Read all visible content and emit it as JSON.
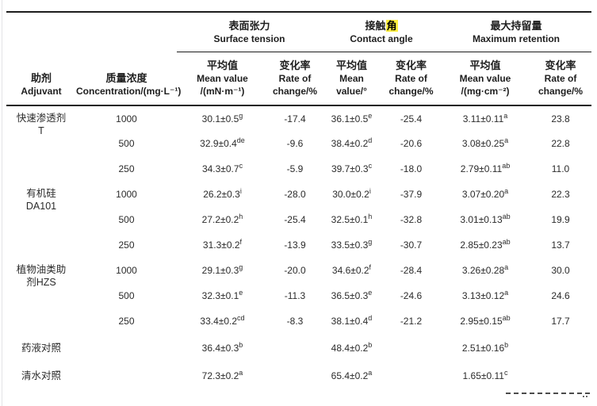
{
  "colors": {
    "highlight": "#ffef3f",
    "rule": "#1c1c1c"
  },
  "table": {
    "header": {
      "adjuvant": {
        "zh": "助剂",
        "en": "Adjuvant"
      },
      "concentration": {
        "zh": "质量浓度",
        "en": "Concentration/(mg·L⁻¹)"
      },
      "groups": [
        {
          "zh": "表面张力",
          "en": "Surface tension",
          "mean_zh": "平均值",
          "mean_en1": "Mean value",
          "mean_en2": "/(mN·m⁻¹)",
          "rate_zh": "变化率",
          "rate_en1": "Rate of",
          "rate_en2": "change/%"
        },
        {
          "zh_prefix": "接触",
          "zh_highlight": "角",
          "en": "Contact angle",
          "mean_zh": "平均值",
          "mean_en1": "Mean",
          "mean_en2": "value/°",
          "rate_zh": "变化率",
          "rate_en1": "Rate of",
          "rate_en2": "change/%"
        },
        {
          "zh": "最大持留量",
          "en": "Maximum retention",
          "mean_zh": "平均值",
          "mean_en1": "Mean value",
          "mean_en2": "/(mg·cm⁻²)",
          "rate_zh": "变化率",
          "rate_en1": "Rate of",
          "rate_en2": "change/%"
        }
      ]
    },
    "rows": [
      {
        "adjuvant": [
          "快速渗透剂",
          "T"
        ],
        "span": 3,
        "conc": "1000",
        "st_mean": "30.1±0.5",
        "st_sup": "g",
        "st_rate": "-17.4",
        "ca_mean": "36.1±0.5",
        "ca_sup": "e",
        "ca_rate": "-25.4",
        "mr_mean": "3.11±0.11",
        "mr_sup": "a",
        "mr_rate": "23.8"
      },
      {
        "conc": "500",
        "st_mean": "32.9±0.4",
        "st_sup": "de",
        "st_rate": "-9.6",
        "ca_mean": "38.4±0.2",
        "ca_sup": "d",
        "ca_rate": "-20.6",
        "mr_mean": "3.08±0.25",
        "mr_sup": "a",
        "mr_rate": "22.8"
      },
      {
        "conc": "250",
        "st_mean": "34.3±0.7",
        "st_sup": "c",
        "st_rate": "-5.9",
        "ca_mean": "39.7±0.3",
        "ca_sup": "c",
        "ca_rate": "-18.0",
        "mr_mean": "2.79±0.11",
        "mr_sup": "ab",
        "mr_rate": "11.0"
      },
      {
        "adjuvant": [
          "有机硅",
          "DA101"
        ],
        "span": 3,
        "conc": "1000",
        "st_mean": "26.2±0.3",
        "st_sup": "i",
        "st_rate": "-28.0",
        "ca_mean": "30.0±0.2",
        "ca_sup": "i",
        "ca_rate": "-37.9",
        "mr_mean": "3.07±0.20",
        "mr_sup": "a",
        "mr_rate": "22.3"
      },
      {
        "conc": "500",
        "st_mean": "27.2±0.2",
        "st_sup": "h",
        "st_rate": "-25.4",
        "ca_mean": "32.5±0.1",
        "ca_sup": "h",
        "ca_rate": "-32.8",
        "mr_mean": "3.01±0.13",
        "mr_sup": "ab",
        "mr_rate": "19.9"
      },
      {
        "conc": "250",
        "st_mean": "31.3±0.2",
        "st_sup": "f",
        "st_rate": "-13.9",
        "ca_mean": "33.5±0.3",
        "ca_sup": "g",
        "ca_rate": "-30.7",
        "mr_mean": "2.85±0.23",
        "mr_sup": "ab",
        "mr_rate": "13.7"
      },
      {
        "adjuvant": [
          "植物油类助",
          "剂HZS"
        ],
        "span": 3,
        "conc": "1000",
        "st_mean": "29.1±0.3",
        "st_sup": "g",
        "st_rate": "-20.0",
        "ca_mean": "34.6±0.2",
        "ca_sup": "f",
        "ca_rate": "-28.4",
        "mr_mean": "3.26±0.28",
        "mr_sup": "a",
        "mr_rate": "30.0"
      },
      {
        "conc": "500",
        "st_mean": "32.3±0.1",
        "st_sup": "e",
        "st_rate": "-11.3",
        "ca_mean": "36.5±0.3",
        "ca_sup": "e",
        "ca_rate": "-24.6",
        "mr_mean": "3.13±0.12",
        "mr_sup": "a",
        "mr_rate": "24.6"
      },
      {
        "conc": "250",
        "st_mean": "33.4±0.2",
        "st_sup": "cd",
        "st_rate": "-8.3",
        "ca_mean": "38.1±0.4",
        "ca_sup": "d",
        "ca_rate": "-21.2",
        "mr_mean": "2.95±0.15",
        "mr_sup": "ab",
        "mr_rate": "17.7"
      },
      {
        "adjuvant": [
          "药液对照"
        ],
        "span": 1,
        "tall": true,
        "conc": "",
        "st_mean": "36.4±0.3",
        "st_sup": "b",
        "st_rate": "",
        "ca_mean": "48.4±0.2",
        "ca_sup": "b",
        "ca_rate": "",
        "mr_mean": "2.51±0.16",
        "mr_sup": "b",
        "mr_rate": ""
      },
      {
        "adjuvant": [
          "清水对照"
        ],
        "span": 1,
        "tall": true,
        "conc": "",
        "st_mean": "72.3±0.2",
        "st_sup": "a",
        "st_rate": "",
        "ca_mean": "65.4±0.2",
        "ca_sup": "a",
        "ca_rate": "",
        "mr_mean": "1.65±0.11",
        "mr_sup": "c",
        "mr_rate": ""
      }
    ]
  }
}
